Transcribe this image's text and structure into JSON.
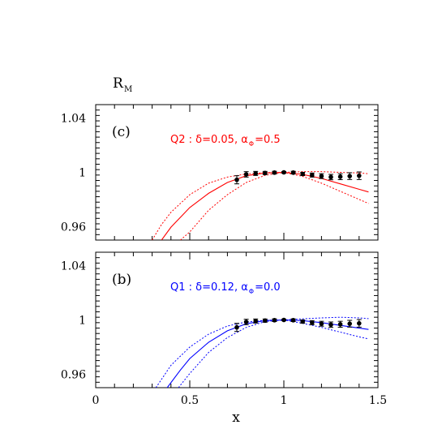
{
  "chart_data": {
    "type": "scatter",
    "ylabel_main": "R",
    "ylabel_sub": "M",
    "xlabel": "x",
    "xlim": [
      0,
      1.5
    ],
    "xticks": [
      0,
      0.5,
      1,
      1.5
    ],
    "xtick_labels": [
      "0",
      "0.5",
      "1",
      "1.5"
    ],
    "panels": [
      {
        "panel_label": "(c)",
        "annotation": "Q2 :  δ=0.05, α",
        "annotation_sub": "Φ",
        "annotation_tail": "=0.5",
        "color": "#ff0000",
        "ylim": [
          0.95,
          1.05
        ],
        "yticks": [
          0.96,
          1,
          1.04
        ],
        "ytick_labels": [
          "0.96",
          "1",
          "1.04"
        ],
        "points": {
          "x": [
            0.75,
            0.8,
            0.85,
            0.9,
            0.95,
            1.0,
            1.05,
            1.1,
            1.15,
            1.2,
            1.25,
            1.3,
            1.35,
            1.4
          ],
          "y": [
            0.9945,
            0.9985,
            0.9992,
            0.9995,
            0.9998,
            1.0,
            0.9998,
            0.9988,
            0.998,
            0.9972,
            0.9965,
            0.9968,
            0.9972,
            0.9975
          ],
          "err": [
            0.003,
            0.002,
            0.0015,
            0.0012,
            0.001,
            0.0006,
            0.001,
            0.0012,
            0.0015,
            0.0018,
            0.002,
            0.0022,
            0.0025,
            0.0028
          ]
        },
        "central_curve": {
          "x": [
            0.35,
            0.4,
            0.5,
            0.6,
            0.7,
            0.8,
            0.9,
            1.0,
            1.1,
            1.2,
            1.3,
            1.4,
            1.45
          ],
          "y": [
            0.95,
            0.9595,
            0.974,
            0.9845,
            0.9925,
            0.9975,
            0.9995,
            1.0,
            0.9985,
            0.9955,
            0.9915,
            0.9875,
            0.9855
          ]
        },
        "upper_band": {
          "x": [
            0.3,
            0.35,
            0.4,
            0.5,
            0.6,
            0.7,
            0.8,
            0.9,
            1.0,
            1.1,
            1.2,
            1.3,
            1.4,
            1.45
          ],
          "y": [
            0.95,
            0.9615,
            0.9705,
            0.9835,
            0.992,
            0.9965,
            0.9988,
            0.9998,
            1.0,
            1.0005,
            1.0005,
            1.0,
            0.9995,
            0.999
          ]
        },
        "lower_band": {
          "x": [
            0.45,
            0.5,
            0.6,
            0.7,
            0.8,
            0.9,
            1.0,
            1.1,
            1.2,
            1.3,
            1.4,
            1.45
          ],
          "y": [
            0.95,
            0.956,
            0.972,
            0.9835,
            0.9925,
            0.9978,
            1.0,
            0.997,
            0.992,
            0.986,
            0.98,
            0.977
          ]
        }
      },
      {
        "panel_label": "(b)",
        "annotation": "Q1 :  δ=0.12, α",
        "annotation_sub": "Φ",
        "annotation_tail": "=0.0",
        "color": "#0000ff",
        "ylim": [
          0.95,
          1.05
        ],
        "yticks": [
          0.96,
          1,
          1.04
        ],
        "ytick_labels": [
          "0.96",
          "1",
          "1.04"
        ],
        "points": {
          "x": [
            0.75,
            0.8,
            0.85,
            0.9,
            0.95,
            1.0,
            1.05,
            1.1,
            1.15,
            1.2,
            1.25,
            1.3,
            1.35,
            1.4
          ],
          "y": [
            0.9945,
            0.9985,
            0.9992,
            0.9995,
            0.9998,
            1.0,
            0.9998,
            0.9988,
            0.998,
            0.9972,
            0.9965,
            0.9968,
            0.9972,
            0.9975
          ],
          "err": [
            0.003,
            0.002,
            0.0015,
            0.0012,
            0.001,
            0.0006,
            0.001,
            0.0012,
            0.0015,
            0.0018,
            0.002,
            0.0022,
            0.0025,
            0.0028
          ]
        },
        "central_curve": {
          "x": [
            0.38,
            0.45,
            0.5,
            0.6,
            0.7,
            0.8,
            0.9,
            1.0,
            1.1,
            1.2,
            1.3,
            1.4,
            1.45
          ],
          "y": [
            0.95,
            0.963,
            0.9715,
            0.9835,
            0.992,
            0.9972,
            0.9995,
            1.0,
            0.9995,
            0.998,
            0.996,
            0.994,
            0.993
          ]
        },
        "upper_band": {
          "x": [
            0.32,
            0.4,
            0.5,
            0.6,
            0.7,
            0.8,
            0.9,
            1.0,
            1.1,
            1.2,
            1.3,
            1.4,
            1.45
          ],
          "y": [
            0.95,
            0.9665,
            0.98,
            0.9895,
            0.9955,
            0.9985,
            0.9998,
            1.0,
            1.0008,
            1.0015,
            1.002,
            1.0015,
            1.001
          ]
        },
        "lower_band": {
          "x": [
            0.44,
            0.5,
            0.6,
            0.7,
            0.8,
            0.9,
            1.0,
            1.1,
            1.2,
            1.3,
            1.4,
            1.45
          ],
          "y": [
            0.95,
            0.9605,
            0.976,
            0.987,
            0.9945,
            0.9988,
            1.0,
            0.9975,
            0.9945,
            0.991,
            0.9875,
            0.986
          ]
        }
      }
    ]
  }
}
